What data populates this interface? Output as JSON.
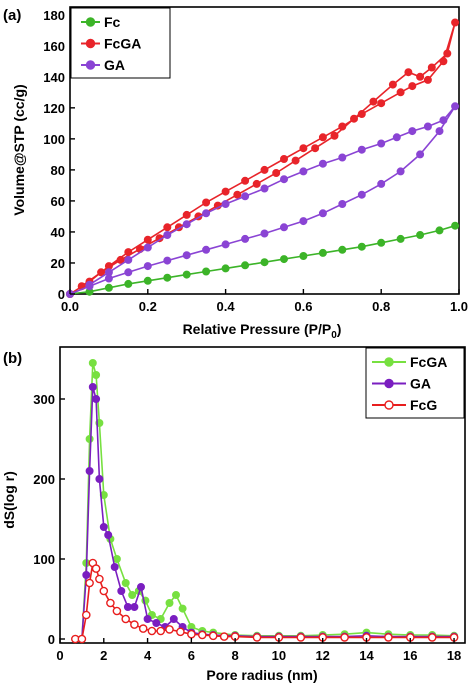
{
  "chart_data": [
    {
      "type": "line",
      "panel_label": "(a)",
      "xlabel": "Relative Pressure (P/P",
      "xlabel_sub": "0",
      "xlabel_close": ")",
      "ylabel": "Volume@STP (cc/g)",
      "xlim": [
        0,
        1
      ],
      "ylim": [
        0,
        185
      ],
      "xticks": [
        "0.0",
        "0.2",
        "0.4",
        "0.6",
        "0.8",
        "1.0"
      ],
      "xtick_values": [
        0,
        0.2,
        0.4,
        0.6,
        0.8,
        1.0
      ],
      "yticks": [
        "0",
        "20",
        "40",
        "60",
        "80",
        "100",
        "120",
        "140",
        "160",
        "180"
      ],
      "ytick_values": [
        0,
        20,
        40,
        60,
        80,
        100,
        120,
        140,
        160,
        180
      ],
      "legend_position": "top-left",
      "series": [
        {
          "name": "Fc",
          "color": "#3cb428",
          "marker": "circle",
          "x": [
            0.0,
            0.05,
            0.1,
            0.15,
            0.2,
            0.25,
            0.3,
            0.35,
            0.4,
            0.45,
            0.5,
            0.55,
            0.6,
            0.65,
            0.7,
            0.75,
            0.8,
            0.85,
            0.9,
            0.95,
            0.99
          ],
          "y": [
            0,
            1.5,
            4,
            6.5,
            8.5,
            10.5,
            12.5,
            14.5,
            16.5,
            18.5,
            20.5,
            22.5,
            24.5,
            26.5,
            28.5,
            30.5,
            33,
            35.5,
            38,
            41,
            44
          ]
        },
        {
          "name": "FcGA",
          "color": "#e8242a",
          "marker": "circle",
          "x": [
            0.0,
            0.05,
            0.1,
            0.15,
            0.2,
            0.25,
            0.3,
            0.35,
            0.4,
            0.45,
            0.5,
            0.55,
            0.6,
            0.65,
            0.7,
            0.75,
            0.8,
            0.85,
            0.88,
            0.92,
            0.96,
            0.99,
            0.97,
            0.93,
            0.9,
            0.87,
            0.83,
            0.78,
            0.73,
            0.68,
            0.63,
            0.58,
            0.53,
            0.48,
            0.43,
            0.38,
            0.33,
            0.28,
            0.23,
            0.18,
            0.13,
            0.08,
            0.03
          ],
          "y": [
            0,
            8,
            18,
            27,
            35,
            43,
            51,
            59,
            66,
            73,
            80,
            87,
            94,
            101,
            108,
            116,
            123,
            130,
            134,
            138,
            150,
            175,
            155,
            146,
            140,
            143,
            135,
            124,
            113,
            102,
            94,
            86,
            78,
            71,
            64,
            57,
            50,
            43,
            36,
            29,
            22,
            14,
            5
          ]
        },
        {
          "name": "GA",
          "color": "#8a44d4",
          "marker": "circle",
          "x": [
            0.0,
            0.05,
            0.1,
            0.15,
            0.2,
            0.25,
            0.3,
            0.35,
            0.4,
            0.45,
            0.5,
            0.55,
            0.6,
            0.65,
            0.7,
            0.75,
            0.8,
            0.85,
            0.9,
            0.95,
            0.99,
            0.96,
            0.92,
            0.88,
            0.84,
            0.8,
            0.75,
            0.7,
            0.65,
            0.6,
            0.55,
            0.5,
            0.45,
            0.4,
            0.35,
            0.3,
            0.25,
            0.2,
            0.15,
            0.1,
            0.05
          ],
          "y": [
            0,
            5,
            10,
            14,
            18,
            21.5,
            25,
            28.5,
            32,
            35.5,
            39,
            43,
            47,
            52,
            58,
            64,
            71,
            79,
            90,
            105,
            121,
            112,
            108,
            105,
            101,
            97,
            93,
            88,
            84,
            79,
            74,
            68,
            63,
            58,
            52,
            45,
            38,
            30,
            22,
            14,
            6
          ]
        }
      ]
    },
    {
      "type": "line",
      "panel_label": "(b)",
      "xlabel": "Pore radius (nm)",
      "ylabel": "dS(log r)",
      "xlim": [
        0,
        18.5
      ],
      "ylim": [
        -5,
        365
      ],
      "xticks": [
        "0",
        "2",
        "4",
        "6",
        "8",
        "10",
        "12",
        "14",
        "16",
        "18"
      ],
      "xtick_values": [
        0,
        2,
        4,
        6,
        8,
        10,
        12,
        14,
        16,
        18
      ],
      "yticks": [
        "0",
        "100",
        "200",
        "300"
      ],
      "ytick_values": [
        0,
        100,
        200,
        300
      ],
      "legend_position": "top-right",
      "series": [
        {
          "name": "FcGA",
          "color": "#77e040",
          "marker": "circle",
          "x": [
            1.0,
            1.2,
            1.35,
            1.5,
            1.65,
            1.8,
            2.0,
            2.3,
            2.6,
            3.0,
            3.3,
            3.6,
            3.9,
            4.2,
            4.6,
            5.0,
            5.3,
            5.6,
            6.0,
            6.5,
            7.0,
            8.0,
            9.0,
            10.0,
            11.0,
            12.0,
            13.0,
            14.0,
            15.0,
            16.0,
            17.0,
            18.0
          ],
          "y": [
            0,
            95,
            250,
            345,
            330,
            270,
            180,
            125,
            100,
            70,
            55,
            60,
            48,
            30,
            25,
            45,
            55,
            38,
            15,
            10,
            8,
            5,
            4,
            4,
            4,
            5,
            6,
            8,
            6,
            5,
            5,
            4
          ]
        },
        {
          "name": "GA",
          "color": "#7a1ec0",
          "marker": "circle",
          "x": [
            1.0,
            1.2,
            1.35,
            1.5,
            1.65,
            1.8,
            2.0,
            2.2,
            2.5,
            2.8,
            3.1,
            3.4,
            3.7,
            4.0,
            4.4,
            4.8,
            5.2,
            5.6,
            6.0,
            6.5,
            7.0,
            8.0,
            9.0,
            10.0,
            11.0,
            12.0,
            13.0,
            14.0,
            15.0,
            16.0,
            17.0,
            18.0
          ],
          "y": [
            0,
            80,
            210,
            315,
            300,
            200,
            140,
            130,
            90,
            60,
            40,
            40,
            65,
            25,
            20,
            15,
            25,
            15,
            8,
            6,
            5,
            4,
            3,
            3,
            3,
            3,
            3,
            4,
            3,
            3,
            3,
            3
          ]
        },
        {
          "name": "FcG",
          "color": "#e81e1e",
          "marker": "circle-open",
          "x": [
            0.7,
            1.0,
            1.2,
            1.35,
            1.5,
            1.65,
            1.8,
            2.0,
            2.3,
            2.6,
            3.0,
            3.4,
            3.8,
            4.2,
            4.6,
            5.0,
            5.5,
            6.0,
            6.5,
            7.0,
            7.5,
            8.0,
            9.0,
            10.0,
            11.0,
            12.0,
            13.0,
            14.0,
            15.0,
            16.0,
            17.0,
            18.0
          ],
          "y": [
            0,
            0,
            30,
            70,
            95,
            88,
            75,
            60,
            45,
            35,
            25,
            18,
            13,
            10,
            10,
            12,
            9,
            6,
            5,
            4,
            3,
            3,
            2,
            2,
            2,
            2,
            2,
            2,
            2,
            2,
            2,
            2
          ]
        }
      ]
    }
  ]
}
